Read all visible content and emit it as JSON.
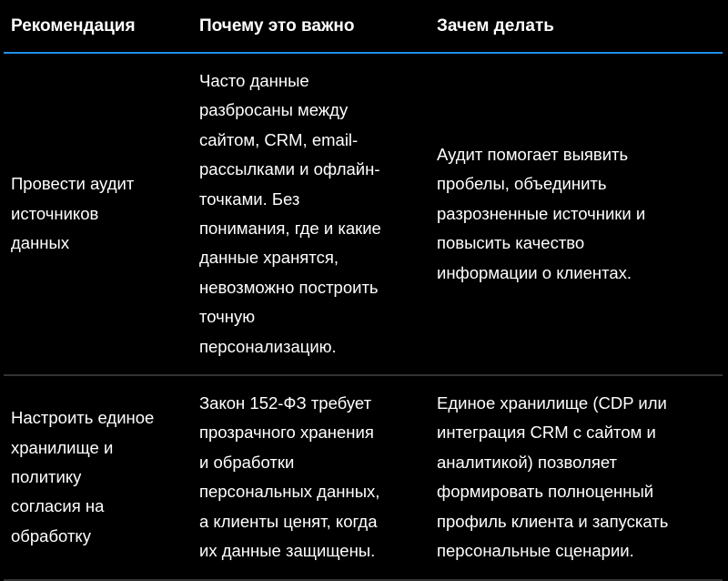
{
  "headers": [
    "Рекомендация",
    "Почему это важно",
    "Зачем делать"
  ],
  "rows": [
    {
      "recommendation": [
        "Провести аудит",
        "источников",
        "данных"
      ],
      "why": [
        "Часто данные",
        "разбросаны между",
        "сайтом, CRM, email-",
        "рассылками и офлайн-",
        "точками. Без",
        "понимания, где и какие",
        "данные хранятся,",
        "невозможно построить",
        "точную",
        "персонализацию."
      ],
      "purpose": [
        "Аудит помогает выявить",
        "пробелы, объединить",
        "разрозненные источники и",
        "повысить качество",
        "информации о клиентах."
      ]
    },
    {
      "recommendation": [
        "Настроить единое",
        "хранилище и",
        "политику",
        "согласия на",
        "обработку"
      ],
      "why": [
        "Закон 152-ФЗ требует",
        "прозрачного хранения",
        "и обработки",
        "персональных данных,",
        "а клиенты ценят, когда",
        "их данные защищены."
      ],
      "purpose": [
        "Единое хранилище (CDP или",
        "интеграция CRM с сайтом и",
        "аналитикой) позволяет",
        "формировать полноценный",
        "профиль клиента и запускать",
        "персональные сценарии."
      ]
    }
  ],
  "colors": {
    "background": "#000000",
    "text": "#ffffff",
    "header_rule": "#1e90e8",
    "row_rule": "#333333"
  }
}
